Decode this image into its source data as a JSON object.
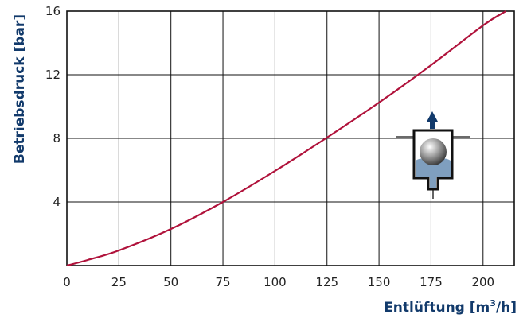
{
  "chart_data": {
    "type": "line",
    "xlabel": "Entlüftung [m³/h]",
    "ylabel": "Betriebsdruck [bar]",
    "xlim": [
      0,
      215
    ],
    "ylim": [
      0,
      16
    ],
    "x_ticks": [
      "0",
      "25",
      "50",
      "75",
      "100",
      "125",
      "150",
      "175",
      "200"
    ],
    "y_ticks": [
      "4",
      "8",
      "12",
      "16"
    ],
    "grid": true,
    "series": [
      {
        "color": "#b0123b",
        "x": [
          0,
          10,
          25,
          50,
          75,
          100,
          125,
          150,
          175,
          200,
          211
        ],
        "y": [
          0,
          0.35,
          0.95,
          2.3,
          4.0,
          5.95,
          8.05,
          10.25,
          12.6,
          15.1,
          16.0
        ]
      }
    ],
    "colors": {
      "axis_title": "#123a6b",
      "line": "#b0123b",
      "icon": "#123a6b"
    },
    "icon": "air-vent-valve-icon"
  }
}
